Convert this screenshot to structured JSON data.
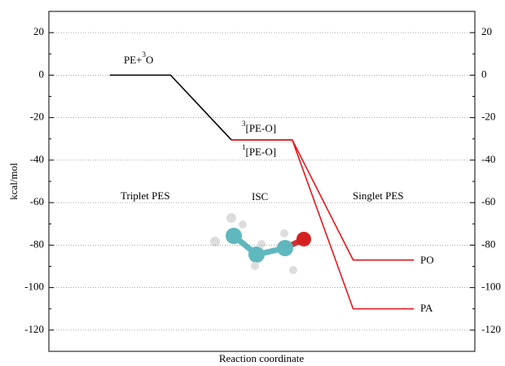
{
  "chart_data": {
    "type": "line",
    "ylabel": "kcal/mol",
    "xlabel": "Reaction coordinate",
    "xlim": [
      -1,
      6
    ],
    "ylim": [
      -130,
      30
    ],
    "yticks": [
      20,
      0,
      -20,
      -40,
      -60,
      -80,
      -100,
      -120
    ],
    "grid": true,
    "series": [
      {
        "color": "#000000",
        "x": [
          0,
          1,
          2
        ],
        "values": [
          0,
          0,
          -30.5
        ]
      },
      {
        "color": "#e8161b",
        "x": [
          2,
          3,
          4,
          5
        ],
        "values": [
          -30.5,
          -30.5,
          -87,
          -87
        ]
      },
      {
        "color": "#e8161b",
        "x": [
          2,
          3,
          4,
          5
        ],
        "values": [
          -30.5,
          -30.5,
          -110,
          -110
        ]
      }
    ],
    "annotations": {
      "reactant": {
        "text": "PE+",
        "sup": "3",
        "tail": "O"
      },
      "triplet_complex": {
        "sup": "3",
        "text": "[PE-O]"
      },
      "singlet_complex": {
        "sup": "1",
        "text": "[PE-O]"
      },
      "triplet_pes": "Triplet PES",
      "isc": "ISC",
      "singlet_pes": {
        "text": "Singlet PES",
        "color": "#e8161b"
      },
      "po": "PO",
      "pa": "PA"
    }
  }
}
